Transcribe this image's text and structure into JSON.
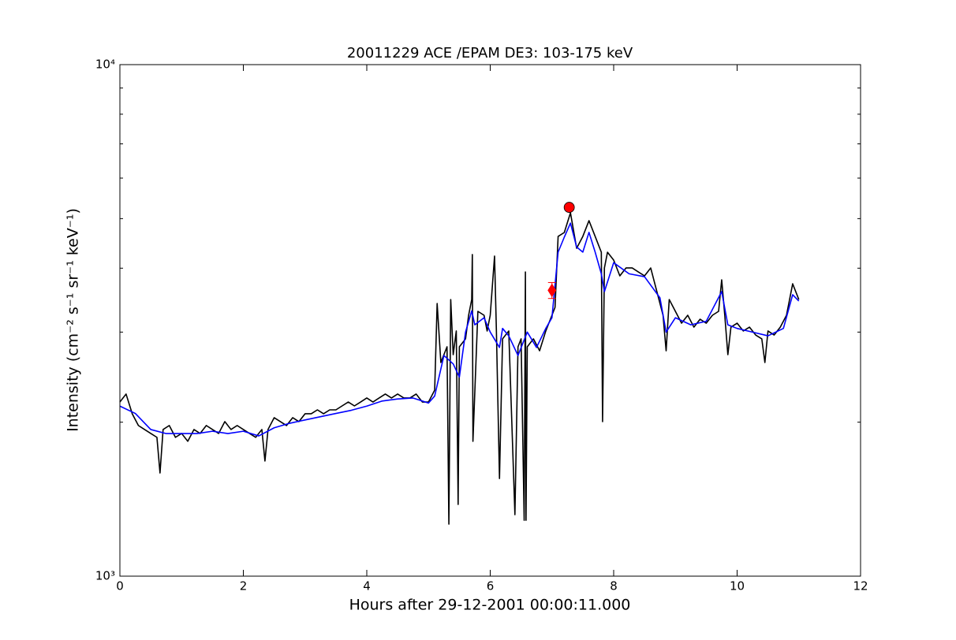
{
  "chart_data": {
    "type": "line",
    "title": "20011229 ACE /EPAM DE3: 103-175 keV",
    "x_label": "Hours after 29-12-2001 00:00:11.000",
    "y_label": "Intensity (cm⁻² s⁻¹ sr⁻¹ keV⁻¹)",
    "log_y": true,
    "xlim": [
      0,
      12
    ],
    "xticks": [
      0,
      2,
      4,
      6,
      8,
      10,
      12
    ],
    "ylim": [
      1000,
      10000
    ],
    "yticks": [
      {
        "value": 1000,
        "label": "10³"
      },
      {
        "value": 10000,
        "label": "10⁴"
      }
    ],
    "minor_yticks": [
      2000,
      3000,
      4000,
      5000,
      6000,
      7000,
      8000,
      9000
    ],
    "series": [
      {
        "color": "#000000",
        "x": [
          0,
          0.1,
          0.2,
          0.3,
          0.4,
          0.5,
          0.6,
          0.65,
          0.7,
          0.8,
          0.9,
          1.0,
          1.1,
          1.2,
          1.3,
          1.4,
          1.5,
          1.6,
          1.7,
          1.8,
          1.9,
          2.0,
          2.1,
          2.2,
          2.3,
          2.35,
          2.4,
          2.5,
          2.6,
          2.7,
          2.8,
          2.9,
          3.0,
          3.1,
          3.2,
          3.3,
          3.4,
          3.5,
          3.6,
          3.7,
          3.8,
          3.9,
          4.0,
          4.1,
          4.2,
          4.3,
          4.4,
          4.5,
          4.6,
          4.7,
          4.8,
          4.9,
          5.0,
          5.1,
          5.14,
          5.2,
          5.3,
          5.33,
          5.36,
          5.4,
          5.45,
          5.48,
          5.5,
          5.6,
          5.65,
          5.7,
          5.71,
          5.72,
          5.8,
          5.9,
          5.95,
          6.0,
          6.07,
          6.1,
          6.15,
          6.2,
          6.3,
          6.4,
          6.45,
          6.5,
          6.55,
          6.57,
          6.58,
          6.6,
          6.7,
          6.8,
          6.9,
          7.0,
          7.05,
          7.1,
          7.2,
          7.3,
          7.4,
          7.5,
          7.6,
          7.7,
          7.8,
          7.82,
          7.85,
          7.9,
          8.0,
          8.1,
          8.2,
          8.3,
          8.4,
          8.5,
          8.6,
          8.7,
          8.8,
          8.85,
          8.9,
          9.0,
          9.1,
          9.2,
          9.3,
          9.4,
          9.5,
          9.6,
          9.7,
          9.75,
          9.8,
          9.85,
          9.9,
          10.0,
          10.1,
          10.2,
          10.3,
          10.4,
          10.45,
          10.5,
          10.6,
          10.7,
          10.8,
          10.9,
          11.0
        ],
        "values": [
          2190,
          2270,
          2077,
          1970,
          1935,
          1901,
          1868,
          1591,
          1935,
          1970,
          1868,
          1901,
          1835,
          1935,
          1901,
          1970,
          1935,
          1901,
          2005,
          1935,
          1970,
          1935,
          1901,
          1868,
          1935,
          1679,
          1935,
          2041,
          2005,
          1970,
          2041,
          2005,
          2077,
          2077,
          2114,
          2077,
          2114,
          2114,
          2152,
          2190,
          2152,
          2190,
          2230,
          2190,
          2230,
          2270,
          2230,
          2270,
          2230,
          2230,
          2270,
          2190,
          2190,
          2310,
          3413,
          2616,
          2808,
          1264,
          3474,
          2710,
          3015,
          1381,
          2808,
          2910,
          3236,
          3474,
          4253,
          1835,
          3294,
          3236,
          3015,
          3236,
          4223,
          3015,
          1552,
          2910,
          3015,
          1319,
          2808,
          2910,
          1286,
          3933,
          1286,
          2808,
          2910,
          2758,
          3015,
          3236,
          3353,
          4615,
          4697,
          5132,
          4375,
          4615,
          4954,
          4615,
          4298,
          2005,
          4004,
          4298,
          4148,
          3864,
          4004,
          4004,
          3933,
          3864,
          4004,
          3600,
          3236,
          2758,
          3474,
          3294,
          3123,
          3236,
          3068,
          3179,
          3123,
          3236,
          3294,
          3796,
          3236,
          2710,
          3068,
          3123,
          3015,
          3068,
          2961,
          2910,
          2616,
          3015,
          2961,
          3068,
          3236,
          3729,
          3474
        ]
      },
      {
        "color": "#0000ff",
        "x": [
          0,
          0.25,
          0.5,
          0.75,
          1,
          1.25,
          1.5,
          1.75,
          2,
          2.25,
          2.5,
          2.75,
          3,
          3.25,
          3.5,
          3.75,
          4,
          4.25,
          4.5,
          4.75,
          5,
          5.1,
          5.25,
          5.4,
          5.5,
          5.6,
          5.7,
          5.75,
          5.9,
          6.0,
          6.15,
          6.2,
          6.3,
          6.45,
          6.6,
          6.75,
          6.9,
          7.0,
          7.1,
          7.2,
          7.3,
          7.4,
          7.5,
          7.6,
          7.7,
          7.8,
          7.85,
          8.0,
          8.25,
          8.5,
          8.75,
          8.85,
          9.0,
          9.25,
          9.5,
          9.75,
          9.85,
          10,
          10.25,
          10.5,
          10.75,
          10.9,
          11.0
        ],
        "values": [
          2150,
          2080,
          1935,
          1900,
          1900,
          1900,
          1920,
          1900,
          1920,
          1880,
          1950,
          1990,
          2020,
          2050,
          2080,
          2110,
          2150,
          2200,
          2220,
          2230,
          2180,
          2250,
          2700,
          2600,
          2450,
          3000,
          3300,
          3100,
          3200,
          3000,
          2800,
          3050,
          2950,
          2700,
          3000,
          2800,
          3050,
          3200,
          4300,
          4600,
          4900,
          4400,
          4300,
          4700,
          4300,
          3900,
          3600,
          4100,
          3900,
          3850,
          3500,
          3000,
          3200,
          3100,
          3150,
          3600,
          3100,
          3050,
          3000,
          2950,
          3050,
          3550,
          3450
        ]
      }
    ],
    "markers": [
      {
        "shape": "circle",
        "color": "#ff0000",
        "x": 7.28,
        "value": 5260
      },
      {
        "shape": "diamond",
        "color": "#ff0000",
        "x": 7.0,
        "value": 3620,
        "error": 130
      }
    ]
  }
}
